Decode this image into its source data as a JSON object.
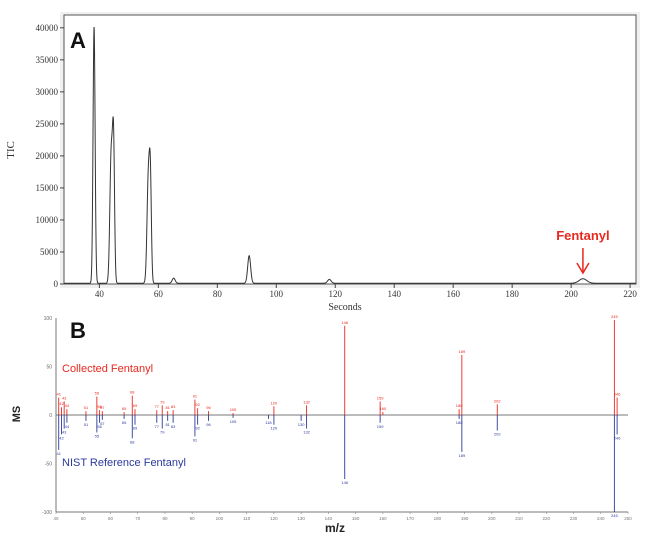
{
  "chart_data": [
    {
      "panel": "A",
      "type": "line",
      "ylabel": "TIC",
      "xlabel": "Seconds",
      "xlim": [
        28,
        222
      ],
      "ylim": [
        0,
        42000
      ],
      "x_ticks": [
        40,
        60,
        80,
        100,
        120,
        140,
        160,
        180,
        200,
        220
      ],
      "y_ticks": [
        0,
        5000,
        10000,
        15000,
        20000,
        25000,
        30000,
        35000,
        40000
      ],
      "peaks": [
        {
          "x": 38.2,
          "y": 40000,
          "w": 0.35
        },
        {
          "x": 44.0,
          "y": 20000,
          "w": 0.45
        },
        {
          "x": 44.8,
          "y": 20800,
          "w": 0.35
        },
        {
          "x": 56.6,
          "y": 16300,
          "w": 0.45
        },
        {
          "x": 57.3,
          "y": 14500,
          "w": 0.35
        },
        {
          "x": 65.2,
          "y": 800,
          "w": 0.5
        },
        {
          "x": 90.8,
          "y": 4300,
          "w": 0.5
        },
        {
          "x": 118.0,
          "y": 600,
          "w": 0.6
        },
        {
          "x": 204.0,
          "y": 700,
          "w": 1.3
        }
      ],
      "annotation": {
        "text": "Fentanyl",
        "x": 204,
        "color": "#e8281e"
      }
    },
    {
      "panel": "B",
      "type": "bar",
      "ylabel": "MS",
      "xlabel": "m/z",
      "xlim": [
        40,
        250
      ],
      "ylim": [
        -100,
        100
      ],
      "series": [
        {
          "name": "Collected Fentanyl",
          "color": "#e8281e",
          "points": [
            [
              41,
              18
            ],
            [
              42,
              8
            ],
            [
              43,
              14
            ],
            [
              44,
              6
            ],
            [
              51,
              4
            ],
            [
              55,
              19
            ],
            [
              56,
              5
            ],
            [
              57,
              4
            ],
            [
              65,
              3
            ],
            [
              68,
              20
            ],
            [
              69,
              6
            ],
            [
              77,
              5
            ],
            [
              79,
              10
            ],
            [
              81,
              4
            ],
            [
              83,
              5
            ],
            [
              91,
              16
            ],
            [
              92,
              7
            ],
            [
              96,
              4
            ],
            [
              105,
              2
            ],
            [
              120,
              9
            ],
            [
              132,
              10
            ],
            [
              146,
              92
            ],
            [
              159,
              14
            ],
            [
              160,
              3
            ],
            [
              188,
              6
            ],
            [
              189,
              62
            ],
            [
              202,
              11
            ],
            [
              245,
              98
            ],
            [
              246,
              18
            ]
          ]
        },
        {
          "name": "NIST Reference Fentanyl",
          "color": "#2b3a9c",
          "points": [
            [
              41,
              -36
            ],
            [
              42,
              -20
            ],
            [
              43,
              -14
            ],
            [
              44,
              -8
            ],
            [
              51,
              -6
            ],
            [
              55,
              -18
            ],
            [
              56,
              -8
            ],
            [
              57,
              -5
            ],
            [
              65,
              -4
            ],
            [
              68,
              -24
            ],
            [
              69,
              -10
            ],
            [
              77,
              -8
            ],
            [
              79,
              -14
            ],
            [
              81,
              -6
            ],
            [
              83,
              -8
            ],
            [
              91,
              -22
            ],
            [
              92,
              -10
            ],
            [
              96,
              -6
            ],
            [
              105,
              -3
            ],
            [
              118,
              -4
            ],
            [
              120,
              -10
            ],
            [
              130,
              -6
            ],
            [
              132,
              -14
            ],
            [
              146,
              -66
            ],
            [
              159,
              -8
            ],
            [
              188,
              -4
            ],
            [
              189,
              -38
            ],
            [
              202,
              -16
            ],
            [
              245,
              -100
            ],
            [
              246,
              -20
            ]
          ]
        }
      ]
    }
  ]
}
